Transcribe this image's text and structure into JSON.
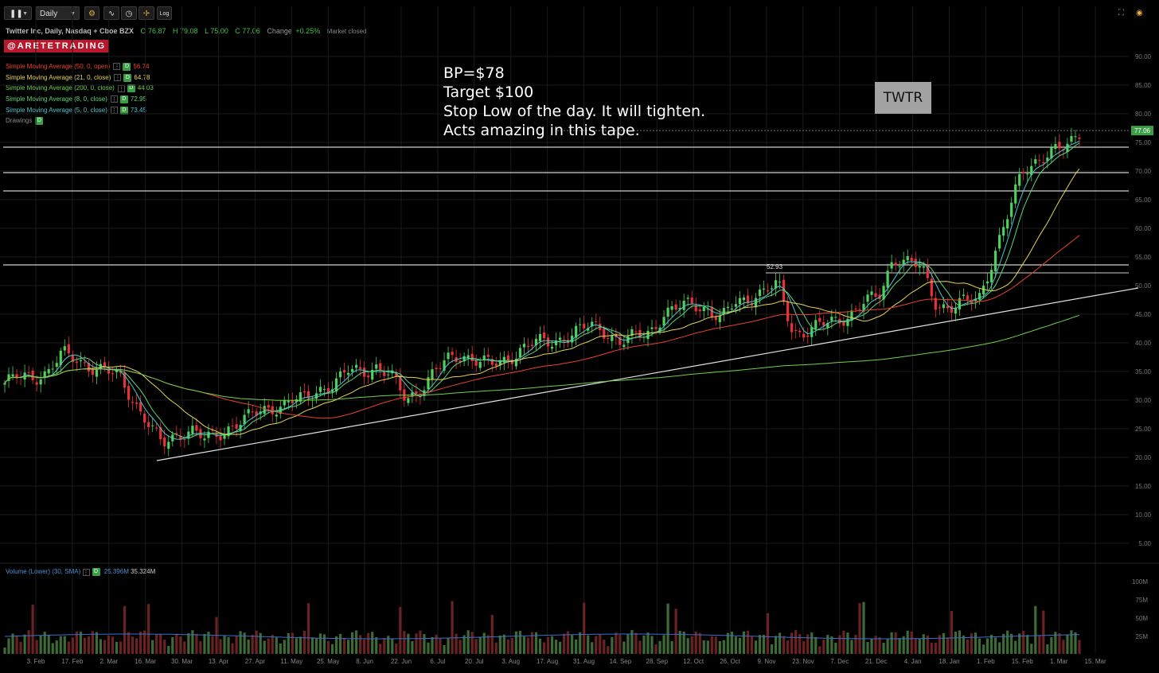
{
  "toolbar": {
    "pause_icon": "pause-icon",
    "interval": "Daily",
    "log_label": "Log",
    "icons": [
      "settings-icon",
      "compare-icon",
      "clock-icon",
      "crosshair-icon"
    ],
    "right_icons": [
      "fullscreen-icon",
      "camera-icon"
    ]
  },
  "header": {
    "title": "Twitter Inc, Daily, Nasdaq + Cboe BZX",
    "open": "O 76.87",
    "high": "H 79.08",
    "low": "L 75.00",
    "close": "C 77.06",
    "change_label": "Change",
    "change": "+0.25%",
    "status": "Market closed"
  },
  "brand": "@ARETETRADING",
  "indicators": [
    {
      "name": "Simple Moving Average (50, 0, open)",
      "value": "56.74",
      "color": "#e8432e"
    },
    {
      "name": "Simple Moving Average (21, 0, close)",
      "value": "64.78",
      "color": "#e6d35a"
    },
    {
      "name": "Simple Moving Average (200, 0, close)",
      "value": "44.03",
      "color": "#6fd04c"
    },
    {
      "name": "Simple Moving Average (8, 0, close)",
      "value": "72.95",
      "color": "#5cd67a"
    },
    {
      "name": "Simple Moving Average (5, 0, close)",
      "value": "73.45",
      "color": "#4bc6cf"
    }
  ],
  "drawings_label": "Drawings",
  "d_badge": "D",
  "annotation": [
    "BP=$78",
    "Target $100",
    "Stop Low of the day. It will tighten.",
    "Acts amazing in this tape."
  ],
  "ticker_tag": "TWTR",
  "volume": {
    "label": "Volume (Lower) (30, SMA)",
    "v1": "25.396M",
    "v2": "35.324M"
  },
  "chart_data": {
    "type": "candlestick",
    "price_axis": {
      "min": 0,
      "max": 90,
      "ticks": [
        "90.00",
        "85.00",
        "80.00",
        "75.00",
        "70.00",
        "65.00",
        "60.00",
        "55.00",
        "50.00",
        "45.00",
        "40.00",
        "35.00",
        "30.00",
        "25.00",
        "20.00",
        "15.00",
        "10.00",
        "5.00"
      ]
    },
    "last_price": "77.06",
    "level_label": "52.93",
    "x_ticks": [
      "3. Feb",
      "17. Feb",
      "2. Mar",
      "16. Mar",
      "30. Mar",
      "13. Apr",
      "27. Apr",
      "11. May",
      "25. May",
      "8. Jun",
      "22. Jun",
      "6. Jul",
      "20. Jul",
      "3. Aug",
      "17. Aug",
      "31. Aug",
      "14. Sep",
      "28. Sep",
      "12. Oct",
      "26. Oct",
      "9. Nov",
      "23. Nov",
      "7. Dec",
      "21. Dec",
      "4. Jan",
      "18. Jan",
      "1. Feb",
      "15. Feb",
      "1. Mar",
      "15. Mar"
    ],
    "volume_ticks": [
      "100M",
      "75M",
      "50M",
      "25M"
    ],
    "close_path": [
      33,
      34,
      34,
      35,
      38,
      37,
      36,
      35,
      34,
      30,
      26,
      22,
      24,
      25,
      23,
      24,
      26,
      27,
      28,
      29,
      30,
      30,
      32,
      33,
      35,
      35,
      36,
      34,
      30,
      32,
      35,
      37,
      38,
      37,
      36,
      37,
      39,
      40,
      40,
      41,
      42,
      43,
      42,
      40,
      41,
      42,
      45,
      46,
      47,
      46,
      44,
      47,
      48,
      49,
      50,
      42,
      42,
      43,
      44,
      45,
      47,
      48,
      55,
      54,
      53,
      47,
      46,
      47,
      48,
      55,
      62,
      70,
      72,
      73,
      74,
      77
    ]
  }
}
